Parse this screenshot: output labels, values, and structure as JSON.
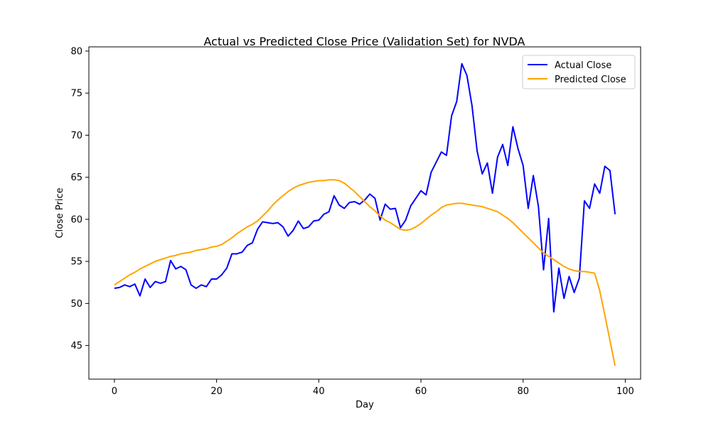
{
  "chart_data": {
    "type": "line",
    "title": "Actual vs Predicted Close Price (Validation Set) for NVDA",
    "xlabel": "Day",
    "ylabel": "Close Price",
    "xlim": [
      -5,
      103
    ],
    "ylim": [
      41,
      80.5
    ],
    "xticks": [
      0,
      20,
      40,
      60,
      80,
      100
    ],
    "yticks": [
      45,
      50,
      55,
      60,
      65,
      70,
      75,
      80
    ],
    "grid": false,
    "legend_position": "top-right",
    "series": [
      {
        "name": "Actual Close",
        "color": "#0000ff",
        "x": [
          0,
          1,
          2,
          3,
          4,
          5,
          6,
          7,
          8,
          9,
          10,
          11,
          12,
          13,
          14,
          15,
          16,
          17,
          18,
          19,
          20,
          21,
          22,
          23,
          24,
          25,
          26,
          27,
          28,
          29,
          30,
          31,
          32,
          33,
          34,
          35,
          36,
          37,
          38,
          39,
          40,
          41,
          42,
          43,
          44,
          45,
          46,
          47,
          48,
          49,
          50,
          51,
          52,
          53,
          54,
          55,
          56,
          57,
          58,
          59,
          60,
          61,
          62,
          63,
          64,
          65,
          66,
          67,
          68,
          69,
          70,
          71,
          72,
          73,
          74,
          75,
          76,
          77,
          78,
          79,
          80,
          81,
          82,
          83,
          84,
          85,
          86,
          87,
          88,
          89,
          90,
          91,
          92,
          93,
          94,
          95,
          96,
          97,
          98
        ],
        "values": [
          51.8,
          51.9,
          52.2,
          52.0,
          52.3,
          50.9,
          52.9,
          51.9,
          52.6,
          52.4,
          52.6,
          55.1,
          54.1,
          54.4,
          54.0,
          52.2,
          51.8,
          52.2,
          52.0,
          52.9,
          52.9,
          53.4,
          54.2,
          55.9,
          55.9,
          56.1,
          56.9,
          57.2,
          58.8,
          59.7,
          59.6,
          59.5,
          59.6,
          59.1,
          58.0,
          58.7,
          59.8,
          58.9,
          59.1,
          59.8,
          59.9,
          60.6,
          60.9,
          62.8,
          61.7,
          61.3,
          62.0,
          62.1,
          61.8,
          62.3,
          63.0,
          62.5,
          59.9,
          61.8,
          61.2,
          61.3,
          59.0,
          59.9,
          61.6,
          62.5,
          63.4,
          62.9,
          65.6,
          66.8,
          68.0,
          67.6,
          72.3,
          74.0,
          78.5,
          77.1,
          73.5,
          68.1,
          65.4,
          66.7,
          63.1,
          67.4,
          68.9,
          66.4,
          71.0,
          68.4,
          66.4,
          61.3,
          65.2,
          61.5,
          54.0,
          60.1,
          49.0,
          54.2,
          50.6,
          53.2,
          51.3,
          53.0,
          62.2,
          61.3,
          64.2,
          63.1,
          66.3,
          65.8,
          60.6
        ]
      },
      {
        "name": "Predicted Close",
        "color": "#ffa500",
        "x": [
          0,
          1,
          2,
          3,
          4,
          5,
          6,
          7,
          8,
          9,
          10,
          11,
          12,
          13,
          14,
          15,
          16,
          17,
          18,
          19,
          20,
          21,
          22,
          23,
          24,
          25,
          26,
          27,
          28,
          29,
          30,
          31,
          32,
          33,
          34,
          35,
          36,
          37,
          38,
          39,
          40,
          41,
          42,
          43,
          44,
          45,
          46,
          47,
          48,
          49,
          50,
          51,
          52,
          53,
          54,
          55,
          56,
          57,
          58,
          59,
          60,
          61,
          62,
          63,
          64,
          65,
          66,
          67,
          68,
          69,
          70,
          71,
          72,
          73,
          74,
          75,
          76,
          77,
          78,
          79,
          80,
          81,
          82,
          83,
          84,
          85,
          86,
          87,
          88,
          89,
          90,
          91,
          92,
          93,
          94,
          95,
          96,
          97,
          98
        ],
        "values": [
          52.2,
          52.6,
          53.0,
          53.4,
          53.7,
          54.1,
          54.4,
          54.7,
          55.0,
          55.2,
          55.4,
          55.6,
          55.7,
          55.9,
          56.0,
          56.1,
          56.3,
          56.4,
          56.5,
          56.7,
          56.8,
          57.0,
          57.4,
          57.8,
          58.3,
          58.7,
          59.1,
          59.4,
          59.8,
          60.4,
          61.0,
          61.7,
          62.3,
          62.8,
          63.3,
          63.7,
          64.0,
          64.2,
          64.4,
          64.5,
          64.6,
          64.6,
          64.7,
          64.7,
          64.6,
          64.3,
          63.8,
          63.3,
          62.7,
          62.1,
          61.5,
          61.0,
          60.4,
          59.9,
          59.6,
          59.2,
          58.8,
          58.7,
          58.8,
          59.1,
          59.5,
          60.0,
          60.5,
          60.9,
          61.4,
          61.7,
          61.8,
          61.9,
          61.9,
          61.8,
          61.7,
          61.6,
          61.5,
          61.3,
          61.1,
          60.9,
          60.5,
          60.1,
          59.6,
          59.0,
          58.4,
          57.8,
          57.2,
          56.6,
          56.0,
          55.6,
          55.2,
          54.8,
          54.4,
          54.1,
          53.9,
          53.8,
          53.8,
          53.7,
          53.6,
          51.5,
          48.6,
          45.6,
          42.6
        ]
      }
    ]
  }
}
